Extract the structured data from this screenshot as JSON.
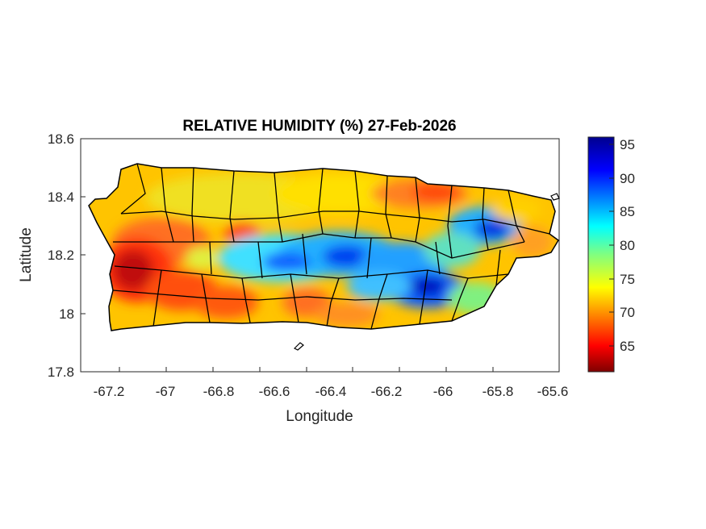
{
  "title": "RELATIVE HUMIDITY (%) 27-Feb-2026",
  "xlabel": "Longitude",
  "ylabel": "Latitude",
  "x_ticks": [
    "-67.2",
    "-67",
    "-66.8",
    "-66.6",
    "-66.4",
    "-66.2",
    "-66",
    "-65.8",
    "-65.6"
  ],
  "y_ticks": [
    "18.6",
    "18.4",
    "18.2",
    "18"
  ],
  "y_tick_bottom": "17.8",
  "colorbar_ticks": [
    "95",
    "90",
    "85",
    "80",
    "75",
    "70",
    "65"
  ],
  "colors": {
    "scale": [
      "#7f0000",
      "#ff0000",
      "#ff8000",
      "#ffff00",
      "#80ff80",
      "#00ffff",
      "#0080ff",
      "#0000ff",
      "#00008f"
    ],
    "boundary": "#000000"
  },
  "map": {
    "region": "Puerto Rico",
    "xlim": [
      -67.3,
      -65.58
    ],
    "ylim": [
      17.8,
      18.6
    ],
    "colorbar_range": [
      61,
      96
    ],
    "colormap": "jet"
  }
}
